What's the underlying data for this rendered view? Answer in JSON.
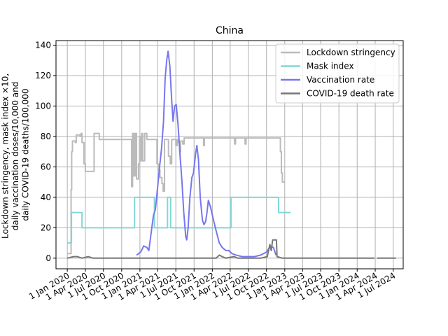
{
  "chart_data": {
    "type": "line",
    "title": "China",
    "xlabel": "",
    "ylabel_lines": [
      "Lockdown stringency, mask index ×10,",
      "daily vaccination doses/10,000 and",
      "daily COVID-19 deaths/100,000"
    ],
    "ylim": [
      -7,
      143
    ],
    "yticks": [
      0,
      20,
      40,
      60,
      80,
      100,
      120,
      140
    ],
    "xlim": [
      "2019-11-05",
      "2024-08-20"
    ],
    "xticks": [
      {
        "date": "2020-01-01",
        "label": "1 Jan 2020"
      },
      {
        "date": "2020-04-01",
        "label": "1 Apr 2020"
      },
      {
        "date": "2020-07-01",
        "label": "1 Jul 2020"
      },
      {
        "date": "2020-10-01",
        "label": "1 Oct 2020"
      },
      {
        "date": "2021-01-01",
        "label": "1 Jan 2021"
      },
      {
        "date": "2021-04-01",
        "label": "1 Apr 2021"
      },
      {
        "date": "2021-07-01",
        "label": "1 Jul 2021"
      },
      {
        "date": "2021-10-01",
        "label": "1 Oct 2021"
      },
      {
        "date": "2022-01-01",
        "label": "1 Jan 2022"
      },
      {
        "date": "2022-04-01",
        "label": "1 Apr 2022"
      },
      {
        "date": "2022-07-01",
        "label": "1 Jul 2022"
      },
      {
        "date": "2022-10-01",
        "label": "1 Oct 2022"
      },
      {
        "date": "2023-01-01",
        "label": "1 Jan 2023"
      },
      {
        "date": "2023-04-01",
        "label": "1 Apr 2023"
      },
      {
        "date": "2023-07-01",
        "label": "1 Jul 2023"
      },
      {
        "date": "2023-10-01",
        "label": "1 Oct 2023"
      },
      {
        "date": "2024-01-01",
        "label": "1 Jan 2024"
      },
      {
        "date": "2024-04-01",
        "label": "1 Apr 2024"
      },
      {
        "date": "2024-07-01",
        "label": "1 Jul 2024"
      }
    ],
    "grid": true,
    "legend_position": "top-right",
    "series": [
      {
        "name": "Lockdown stringency",
        "color": "#bbbbbb",
        "step": true,
        "points": [
          [
            "2020-01-01",
            3
          ],
          [
            "2020-01-15",
            3
          ],
          [
            "2020-01-20",
            45
          ],
          [
            "2020-01-23",
            70
          ],
          [
            "2020-01-27",
            77
          ],
          [
            "2020-02-10",
            76
          ],
          [
            "2020-02-15",
            81
          ],
          [
            "2020-03-05",
            80
          ],
          [
            "2020-03-10",
            82
          ],
          [
            "2020-03-15",
            76
          ],
          [
            "2020-03-25",
            62
          ],
          [
            "2020-04-01",
            57
          ],
          [
            "2020-05-10",
            57
          ],
          [
            "2020-05-15",
            82
          ],
          [
            "2020-06-05",
            82
          ],
          [
            "2020-06-10",
            78
          ],
          [
            "2020-11-15",
            78
          ],
          [
            "2020-11-20",
            47
          ],
          [
            "2020-11-25",
            82
          ],
          [
            "2020-12-01",
            54
          ],
          [
            "2020-12-08",
            82
          ],
          [
            "2020-12-15",
            52
          ],
          [
            "2020-12-25",
            62
          ],
          [
            "2020-12-30",
            80
          ],
          [
            "2021-01-05",
            64
          ],
          [
            "2021-01-10",
            82
          ],
          [
            "2021-01-15",
            64
          ],
          [
            "2021-01-25",
            82
          ],
          [
            "2021-02-05",
            78
          ],
          [
            "2021-03-25",
            78
          ],
          [
            "2021-03-28",
            62
          ],
          [
            "2021-04-03",
            58
          ],
          [
            "2021-04-12",
            53
          ],
          [
            "2021-04-22",
            49
          ],
          [
            "2021-04-28",
            44
          ],
          [
            "2021-05-05",
            78
          ],
          [
            "2021-05-20",
            78
          ],
          [
            "2021-05-25",
            67
          ],
          [
            "2021-06-03",
            62
          ],
          [
            "2021-06-10",
            78
          ],
          [
            "2021-07-01",
            74
          ],
          [
            "2021-07-08",
            78
          ],
          [
            "2021-07-15",
            76
          ],
          [
            "2021-07-20",
            70
          ],
          [
            "2021-07-25",
            77
          ],
          [
            "2021-08-05",
            75
          ],
          [
            "2021-08-12",
            79
          ],
          [
            "2021-08-25",
            79
          ],
          [
            "2021-09-01",
            79
          ],
          [
            "2021-11-15",
            79
          ],
          [
            "2021-11-18",
            74
          ],
          [
            "2021-11-22",
            79
          ],
          [
            "2022-04-20",
            79
          ],
          [
            "2022-04-23",
            75
          ],
          [
            "2022-04-28",
            79
          ],
          [
            "2022-06-12",
            79
          ],
          [
            "2022-06-15",
            75
          ],
          [
            "2022-06-20",
            79
          ],
          [
            "2022-12-05",
            79
          ],
          [
            "2022-12-10",
            70
          ],
          [
            "2022-12-15",
            56
          ],
          [
            "2022-12-20",
            50
          ],
          [
            "2022-12-31",
            50
          ]
        ]
      },
      {
        "name": "Mask index",
        "color": "#80d8d8",
        "step": true,
        "points": [
          [
            "2020-01-01",
            10
          ],
          [
            "2020-01-22",
            30
          ],
          [
            "2020-03-15",
            20
          ],
          [
            "2020-12-05",
            40
          ],
          [
            "2021-03-15",
            20
          ],
          [
            "2021-05-20",
            40
          ],
          [
            "2021-06-05",
            20
          ],
          [
            "2022-04-05",
            40
          ],
          [
            "2022-12-01",
            30
          ],
          [
            "2023-01-31",
            30
          ]
        ]
      },
      {
        "name": "Vaccination rate",
        "color": "#7777ee",
        "step": false,
        "points": [
          [
            "2020-12-15",
            2
          ],
          [
            "2021-01-05",
            4
          ],
          [
            "2021-01-20",
            8
          ],
          [
            "2021-02-05",
            7
          ],
          [
            "2021-02-15",
            5
          ],
          [
            "2021-02-28",
            18
          ],
          [
            "2021-03-10",
            28
          ],
          [
            "2021-03-20",
            32
          ],
          [
            "2021-03-30",
            45
          ],
          [
            "2021-04-10",
            60
          ],
          [
            "2021-04-20",
            72
          ],
          [
            "2021-04-30",
            90
          ],
          [
            "2021-05-08",
            118
          ],
          [
            "2021-05-16",
            130
          ],
          [
            "2021-05-23",
            136
          ],
          [
            "2021-06-01",
            126
          ],
          [
            "2021-06-10",
            104
          ],
          [
            "2021-06-17",
            90
          ],
          [
            "2021-06-25",
            100
          ],
          [
            "2021-07-03",
            101
          ],
          [
            "2021-07-12",
            88
          ],
          [
            "2021-07-22",
            68
          ],
          [
            "2021-08-01",
            50
          ],
          [
            "2021-08-10",
            30
          ],
          [
            "2021-08-20",
            14
          ],
          [
            "2021-08-25",
            12
          ],
          [
            "2021-09-01",
            20
          ],
          [
            "2021-09-10",
            40
          ],
          [
            "2021-09-20",
            53
          ],
          [
            "2021-09-28",
            56
          ],
          [
            "2021-10-08",
            68
          ],
          [
            "2021-10-15",
            74
          ],
          [
            "2021-10-23",
            65
          ],
          [
            "2021-11-01",
            40
          ],
          [
            "2021-11-12",
            25
          ],
          [
            "2021-11-20",
            22
          ],
          [
            "2021-11-28",
            24
          ],
          [
            "2021-12-05",
            30
          ],
          [
            "2021-12-12",
            38
          ],
          [
            "2021-12-22",
            34
          ],
          [
            "2022-01-05",
            26
          ],
          [
            "2022-01-20",
            18
          ],
          [
            "2022-02-05",
            10
          ],
          [
            "2022-02-20",
            7
          ],
          [
            "2022-03-10",
            5
          ],
          [
            "2022-03-25",
            5
          ],
          [
            "2022-04-10",
            3
          ],
          [
            "2022-05-01",
            2
          ],
          [
            "2022-06-01",
            1
          ],
          [
            "2022-07-01",
            1
          ],
          [
            "2022-08-01",
            1
          ],
          [
            "2022-09-01",
            2
          ],
          [
            "2022-10-01",
            4
          ],
          [
            "2022-10-20",
            8
          ],
          [
            "2022-11-05",
            7
          ],
          [
            "2022-11-18",
            2
          ]
        ]
      },
      {
        "name": "COVID-19 death rate",
        "color": "#777777",
        "step": false,
        "points": [
          [
            "2020-01-01",
            0
          ],
          [
            "2020-02-01",
            1
          ],
          [
            "2020-02-20",
            1
          ],
          [
            "2020-03-15",
            0
          ],
          [
            "2020-04-15",
            1
          ],
          [
            "2020-05-10",
            0
          ],
          [
            "2021-12-01",
            0
          ],
          [
            "2022-01-20",
            0
          ],
          [
            "2022-02-05",
            2
          ],
          [
            "2022-02-20",
            1
          ],
          [
            "2022-03-10",
            0
          ],
          [
            "2022-04-20",
            1
          ],
          [
            "2022-05-10",
            0
          ],
          [
            "2022-09-01",
            0
          ],
          [
            "2022-10-05",
            1
          ],
          [
            "2022-10-18",
            9
          ],
          [
            "2022-10-25",
            5
          ],
          [
            "2022-11-01",
            12
          ],
          [
            "2022-11-20",
            12
          ],
          [
            "2022-11-23",
            1
          ],
          [
            "2022-12-20",
            0
          ],
          [
            "2024-03-28",
            0
          ],
          [
            "2024-04-08",
            null
          ],
          [
            "2024-04-10",
            0
          ],
          [
            "2024-07-15",
            0
          ]
        ]
      }
    ]
  }
}
